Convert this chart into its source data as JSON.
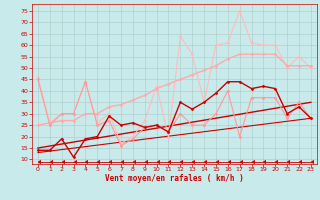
{
  "bg_color": "#c8eaea",
  "grid_color": "#b0c8c8",
  "xlabel": "Vent moyen/en rafales ( km/h )",
  "xlabel_color": "#cc0000",
  "tick_color": "#cc0000",
  "xlim": [
    -0.5,
    23.5
  ],
  "ylim": [
    8,
    78
  ],
  "yticks": [
    10,
    15,
    20,
    25,
    30,
    35,
    40,
    45,
    50,
    55,
    60,
    65,
    70,
    75
  ],
  "xticks": [
    0,
    1,
    2,
    3,
    4,
    5,
    6,
    7,
    8,
    9,
    10,
    11,
    12,
    13,
    14,
    15,
    16,
    17,
    18,
    19,
    20,
    21,
    22,
    23
  ],
  "series": [
    {
      "x": [
        0,
        1,
        2,
        3,
        4,
        5,
        6,
        7,
        8,
        9,
        10,
        11,
        12,
        13,
        14,
        15,
        16,
        17,
        18,
        19,
        20,
        21,
        22,
        23
      ],
      "y": [
        46,
        26,
        30,
        30,
        44,
        26,
        30,
        17,
        20,
        27,
        42,
        20,
        64,
        56,
        35,
        60,
        61,
        75,
        61,
        60,
        60,
        50,
        55,
        50
      ],
      "color": "#ffbbbb",
      "linewidth": 0.8,
      "marker": "D",
      "markersize": 1.5
    },
    {
      "x": [
        0,
        1,
        2,
        3,
        4,
        5,
        6,
        7,
        8,
        9,
        10,
        11,
        12,
        13,
        14,
        15,
        16,
        17,
        18,
        19,
        20,
        21,
        22,
        23
      ],
      "y": [
        25,
        26,
        27,
        27,
        30,
        30,
        33,
        34,
        36,
        38,
        41,
        43,
        45,
        47,
        49,
        51,
        54,
        56,
        56,
        56,
        56,
        51,
        51,
        51
      ],
      "color": "#ffaaaa",
      "linewidth": 1.0,
      "marker": "D",
      "markersize": 1.5
    },
    {
      "x": [
        0,
        1,
        2,
        3,
        4,
        5,
        6,
        7,
        8,
        9,
        10,
        11,
        12,
        13,
        14,
        15,
        16,
        17,
        18,
        19,
        20,
        21,
        22,
        23
      ],
      "y": [
        45,
        25,
        30,
        30,
        44,
        25,
        27,
        16,
        19,
        24,
        25,
        22,
        30,
        25,
        25,
        30,
        40,
        20,
        37,
        37,
        37,
        28,
        35,
        28
      ],
      "color": "#ff9999",
      "linewidth": 0.8,
      "marker": "D",
      "markersize": 1.5
    },
    {
      "x": [
        0,
        1,
        2,
        3,
        4,
        5,
        6,
        7,
        8,
        9,
        10,
        11,
        12,
        13,
        14,
        15,
        16,
        17,
        18,
        19,
        20,
        21,
        22,
        23
      ],
      "y": [
        14,
        14,
        19,
        11,
        19,
        20,
        29,
        25,
        26,
        24,
        25,
        22,
        35,
        32,
        35,
        39,
        44,
        44,
        41,
        42,
        41,
        30,
        33,
        28
      ],
      "color": "#cc0000",
      "linewidth": 1.0,
      "marker": "D",
      "markersize": 1.5
    },
    {
      "x": [
        0,
        23
      ],
      "y": [
        15,
        35
      ],
      "color": "#cc0000",
      "linewidth": 1.0,
      "marker": null,
      "markersize": 0
    },
    {
      "x": [
        0,
        23
      ],
      "y": [
        13,
        28
      ],
      "color": "#cc0000",
      "linewidth": 0.8,
      "marker": null,
      "markersize": 0
    },
    {
      "x": [
        0,
        1,
        2,
        3,
        4,
        5,
        6,
        7,
        8,
        9,
        10,
        11,
        12,
        13,
        14,
        15,
        16,
        17,
        18,
        19,
        20,
        21,
        22,
        23
      ],
      "y": [
        9,
        9,
        9,
        9,
        9,
        9,
        9,
        9,
        9,
        9,
        9,
        9,
        9,
        9,
        9,
        9,
        9,
        9,
        9,
        9,
        9,
        9,
        9,
        9
      ],
      "color": "#cc0000",
      "linewidth": 0.6,
      "marker": 4,
      "markersize": 3
    }
  ]
}
